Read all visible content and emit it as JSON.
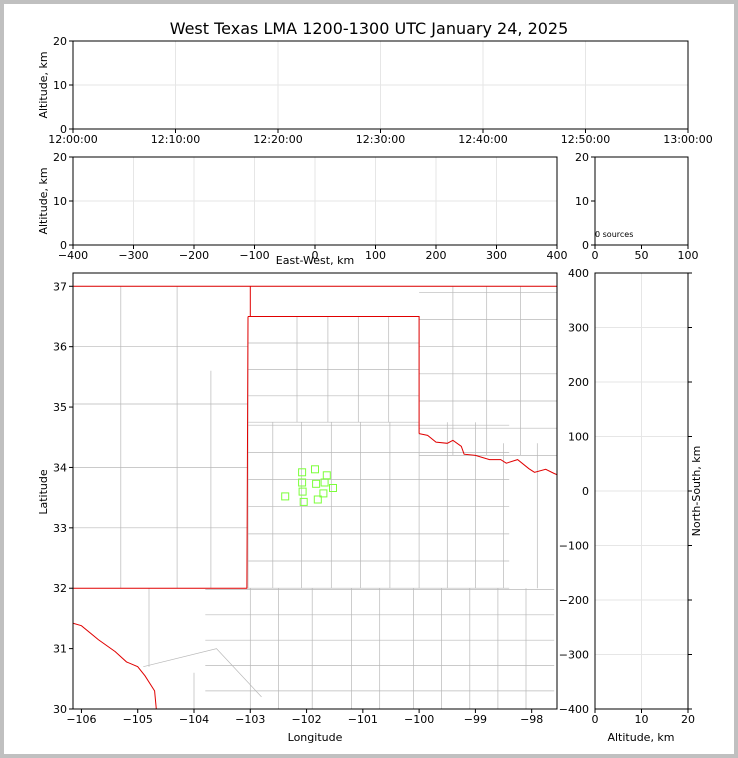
{
  "title": "West Texas LMA 1200-1300 UTC January 24, 2025",
  "colors": {
    "background": "#c0c0c0",
    "state_border": "#e00000",
    "county_border": "#b8b8b8",
    "source_marker": "#7cff3a",
    "grid": "#e6e6e6"
  },
  "chart_data": [
    {
      "panel": "time-altitude",
      "type": "scatter",
      "xlabel": "",
      "ylabel": "Altitude, km",
      "x_tick_labels": [
        "12:00:00",
        "12:10:00",
        "12:20:00",
        "12:30:00",
        "12:40:00",
        "12:50:00",
        "13:00:00"
      ],
      "y_ticks": [
        0,
        10,
        20
      ],
      "ylim": [
        0,
        20
      ],
      "grid": true,
      "points": []
    },
    {
      "panel": "east-west-altitude",
      "type": "scatter",
      "xlabel": "East-West, km",
      "ylabel": "Altitude, km",
      "x_ticks": [
        -400,
        -300,
        -200,
        -100,
        0,
        100,
        200,
        300,
        400
      ],
      "xlim": [
        -400,
        400
      ],
      "y_ticks": [
        0,
        10,
        20
      ],
      "ylim": [
        0,
        20
      ],
      "grid": true,
      "points": []
    },
    {
      "panel": "altitude-histogram",
      "type": "bar",
      "x_ticks": [
        0,
        50,
        100
      ],
      "xlim": [
        0,
        100
      ],
      "y_ticks": [
        0,
        10,
        20
      ],
      "ylim": [
        0,
        20
      ],
      "annotation": "0 sources",
      "values": []
    },
    {
      "panel": "plan-view",
      "type": "scatter",
      "xlabel": "Longitude",
      "ylabel": "Latitude",
      "x_ticks": [
        -106,
        -105,
        -104,
        -103,
        -102,
        -101,
        -100,
        -99,
        -98
      ],
      "xlim": [
        -106.15,
        -97.55
      ],
      "y_ticks": [
        30,
        31,
        32,
        33,
        34,
        35,
        36,
        37
      ],
      "ylim": [
        30,
        37.22
      ],
      "grid": false,
      "station_markers": [
        {
          "lon": -101.85,
          "lat": 33.97
        },
        {
          "lon": -102.08,
          "lat": 33.92
        },
        {
          "lon": -101.64,
          "lat": 33.87
        },
        {
          "lon": -102.08,
          "lat": 33.75
        },
        {
          "lon": -101.83,
          "lat": 33.73
        },
        {
          "lon": -101.68,
          "lat": 33.75
        },
        {
          "lon": -101.53,
          "lat": 33.66
        },
        {
          "lon": -102.07,
          "lat": 33.6
        },
        {
          "lon": -101.7,
          "lat": 33.57
        },
        {
          "lon": -102.38,
          "lat": 33.52
        },
        {
          "lon": -101.8,
          "lat": 33.47
        },
        {
          "lon": -102.05,
          "lat": 33.43
        }
      ]
    },
    {
      "panel": "north-south-altitude",
      "type": "scatter",
      "xlabel": "Altitude, km",
      "ylabel": "North-South, km",
      "x_ticks": [
        0,
        10,
        20
      ],
      "xlim": [
        0,
        20
      ],
      "y_ticks": [
        -400,
        -300,
        -200,
        -100,
        0,
        100,
        200,
        300,
        400
      ],
      "ylim": [
        -400,
        400
      ],
      "grid": true,
      "points": []
    }
  ]
}
